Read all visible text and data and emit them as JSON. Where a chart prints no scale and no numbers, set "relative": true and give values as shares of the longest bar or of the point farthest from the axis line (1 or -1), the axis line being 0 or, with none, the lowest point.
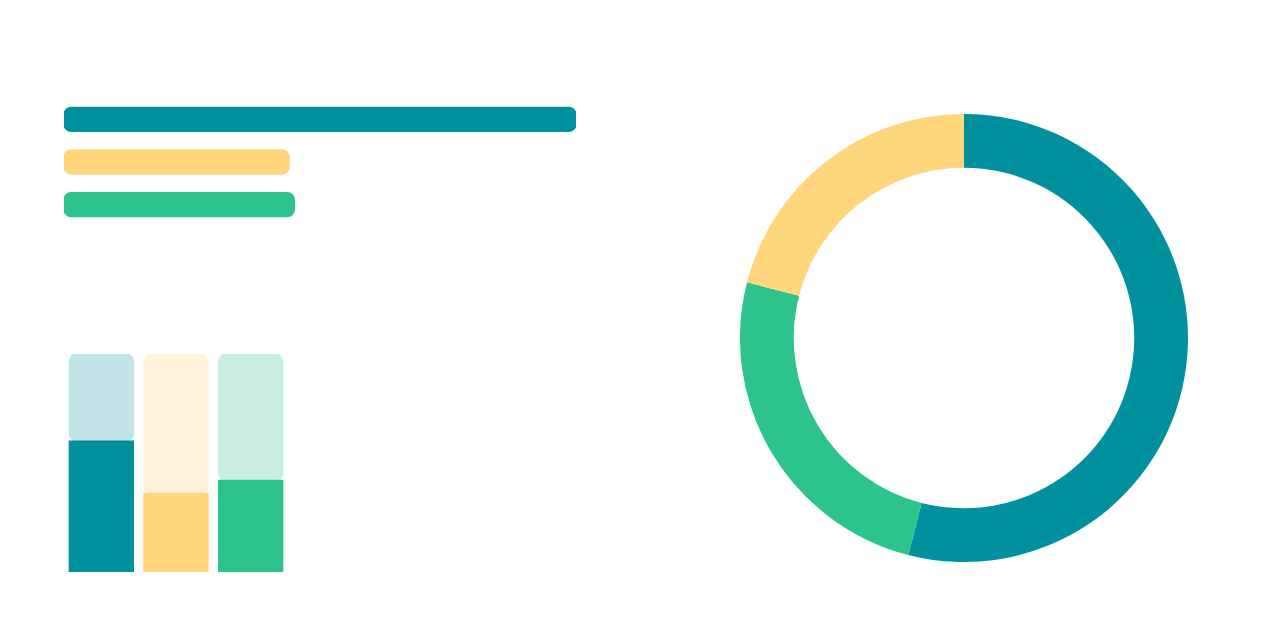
{
  "chart_data": [
    {
      "type": "bar",
      "orientation": "horizontal",
      "relative": true,
      "categories": [
        null,
        null,
        null
      ],
      "values": [
        1,
        0.44,
        0.45
      ],
      "colors": [
        "#00909e",
        "#ffd67b",
        "#2cc48c"
      ]
    },
    {
      "type": "bar",
      "stacked": true,
      "relative": true,
      "categories": [
        null,
        null,
        null
      ],
      "series": [
        {
          "colors": [
            "#00909e",
            "#ffd67b",
            "#2cc48c"
          ],
          "values": [
            0.6,
            0.36,
            0.42
          ]
        },
        {
          "colors": [
            "#c2e3e8",
            "#fff3dc",
            "#c9eee0"
          ],
          "values": [
            0.4,
            0.64,
            0.58
          ]
        }
      ]
    },
    {
      "type": "donut",
      "categories": [
        null,
        null,
        null
      ],
      "values": [
        54,
        25,
        21
      ],
      "colors": [
        "#00909e",
        "#2cc48c",
        "#ffd67b"
      ]
    }
  ]
}
